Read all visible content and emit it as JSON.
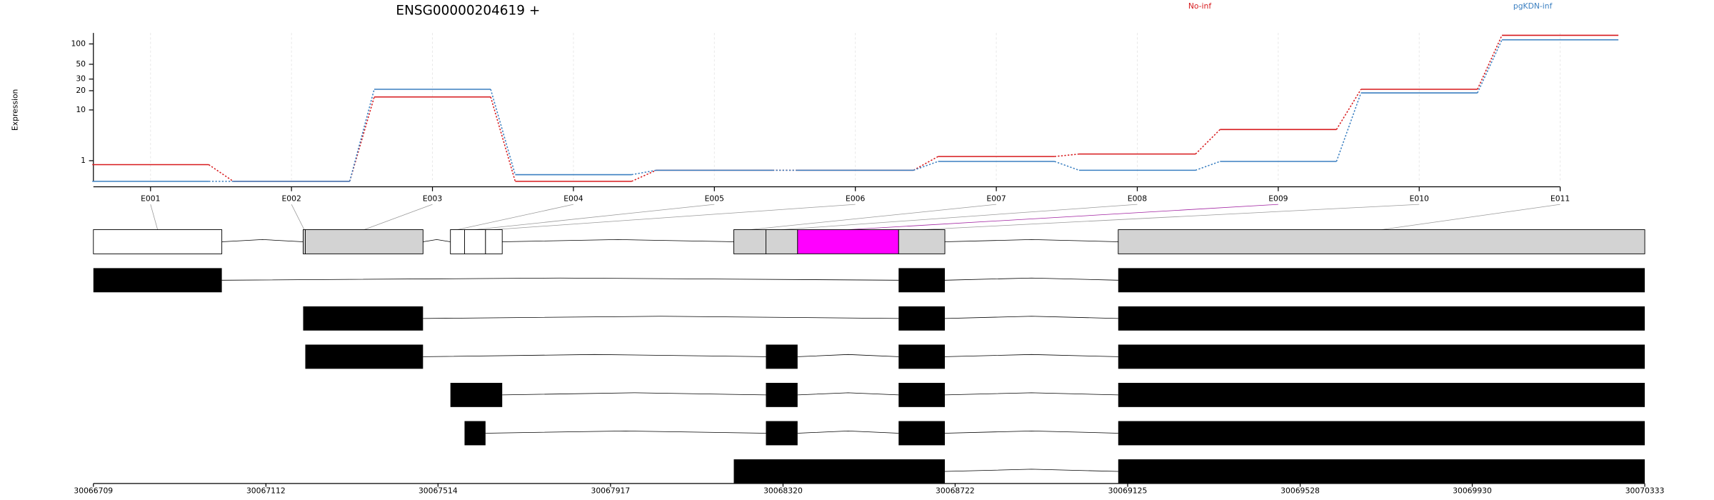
{
  "chart_data": [
    {
      "type": "line",
      "title": "ENSG00000204619 +",
      "y_label": "Expression",
      "categories": [
        "E001",
        "E002",
        "E003",
        "E004",
        "E005",
        "E006",
        "E007",
        "E008",
        "E009",
        "E010",
        "E011"
      ],
      "series": [
        {
          "name": "No-inf",
          "color": "#d7191c",
          "values": [
            0.75,
            0,
            16,
            0,
            0.45,
            0.45,
            1.3,
            1.5,
            4.7,
            21,
            134
          ]
        },
        {
          "name": "pgKDN-inf",
          "color": "#3a7fc1",
          "values": [
            0,
            0,
            21,
            0.25,
            0.45,
            0.45,
            0.95,
            0.45,
            0.95,
            18.5,
            115
          ]
        }
      ],
      "ylim": [
        0,
        145
      ],
      "yticks": [
        1,
        10,
        20,
        30,
        50,
        100
      ],
      "y_scale": "log10(x+1)",
      "grid": true,
      "legend": "top"
    },
    {
      "type": "gene_model",
      "exons": [
        {
          "start": 30066709,
          "end": 30067009,
          "color": "#ffffff"
        },
        {
          "start": 30067199,
          "end": 30067204,
          "color": "#d3d3d3"
        },
        {
          "start": 30067204,
          "end": 30067479,
          "color": "#d3d3d3"
        },
        {
          "start": 30067543,
          "end": 30067576,
          "color": "#ffffff"
        },
        {
          "start": 30067576,
          "end": 30067625,
          "color": "#ffffff"
        },
        {
          "start": 30067625,
          "end": 30067664,
          "color": "#ffffff"
        },
        {
          "start": 30068205,
          "end": 30068280,
          "color": "#d3d3d3"
        },
        {
          "start": 30068280,
          "end": 30068354,
          "color": "#d3d3d3"
        },
        {
          "start": 30068354,
          "end": 30068590,
          "color": "#ff00ff"
        },
        {
          "start": 30068590,
          "end": 30068698,
          "color": "#d3d3d3"
        },
        {
          "start": 30069103,
          "end": 30070333,
          "color": "#d3d3d3"
        }
      ],
      "transcripts": [
        [
          [
            30066709,
            30067009
          ],
          [
            30068590,
            30068698
          ],
          [
            30069103,
            30070333
          ]
        ],
        [
          [
            30067199,
            30067479
          ],
          [
            30068590,
            30068698
          ],
          [
            30069103,
            30070333
          ]
        ],
        [
          [
            30067204,
            30067479
          ],
          [
            30068280,
            30068354
          ],
          [
            30068590,
            30068698
          ],
          [
            30069103,
            30070333
          ]
        ],
        [
          [
            30067543,
            30067664
          ],
          [
            30068280,
            30068354
          ],
          [
            30068590,
            30068698
          ],
          [
            30069103,
            30070333
          ]
        ],
        [
          [
            30067576,
            30067625
          ],
          [
            30068280,
            30068354
          ],
          [
            30068590,
            30068698
          ],
          [
            30069103,
            30070333
          ]
        ],
        [
          [
            30068205,
            30068698
          ],
          [
            30069103,
            30070333
          ]
        ]
      ],
      "xlim": [
        30066709,
        30070333
      ],
      "xticks": [
        30066709,
        30067112,
        30067514,
        30067917,
        30068320,
        30068722,
        30069125,
        30069528,
        30069930,
        30070333
      ]
    }
  ]
}
